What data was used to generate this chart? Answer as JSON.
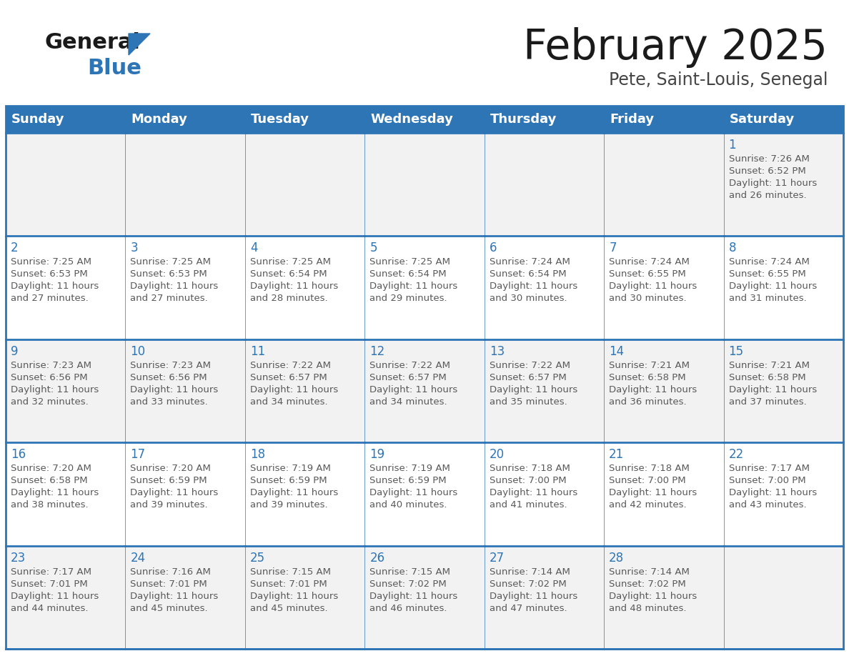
{
  "title": "February 2025",
  "subtitle": "Pete, Saint-Louis, Senegal",
  "days_of_week": [
    "Sunday",
    "Monday",
    "Tuesday",
    "Wednesday",
    "Thursday",
    "Friday",
    "Saturday"
  ],
  "header_bg": "#2E75B6",
  "header_text_color": "#FFFFFF",
  "cell_border_color": "#2E75B6",
  "cell_border_top_color": "#2E75B6",
  "day_number_color": "#2E75B6",
  "cell_text_color": "#595959",
  "bg_color": "#FFFFFF",
  "cell_bg_even": "#F2F2F2",
  "cell_bg_odd": "#FFFFFF",
  "title_color": "#1a1a1a",
  "subtitle_color": "#444444",
  "logo_general_color": "#1a1a1a",
  "logo_blue_color": "#2E75B6",
  "logo_triangle_color": "#2E75B6",
  "calendar_data": [
    [
      null,
      null,
      null,
      null,
      null,
      null,
      {
        "day": 1,
        "sunrise": "7:26 AM",
        "sunset": "6:52 PM",
        "daylight": "11 hours and 26 minutes."
      }
    ],
    [
      {
        "day": 2,
        "sunrise": "7:25 AM",
        "sunset": "6:53 PM",
        "daylight": "11 hours and 27 minutes."
      },
      {
        "day": 3,
        "sunrise": "7:25 AM",
        "sunset": "6:53 PM",
        "daylight": "11 hours and 27 minutes."
      },
      {
        "day": 4,
        "sunrise": "7:25 AM",
        "sunset": "6:54 PM",
        "daylight": "11 hours and 28 minutes."
      },
      {
        "day": 5,
        "sunrise": "7:25 AM",
        "sunset": "6:54 PM",
        "daylight": "11 hours and 29 minutes."
      },
      {
        "day": 6,
        "sunrise": "7:24 AM",
        "sunset": "6:54 PM",
        "daylight": "11 hours and 30 minutes."
      },
      {
        "day": 7,
        "sunrise": "7:24 AM",
        "sunset": "6:55 PM",
        "daylight": "11 hours and 30 minutes."
      },
      {
        "day": 8,
        "sunrise": "7:24 AM",
        "sunset": "6:55 PM",
        "daylight": "11 hours and 31 minutes."
      }
    ],
    [
      {
        "day": 9,
        "sunrise": "7:23 AM",
        "sunset": "6:56 PM",
        "daylight": "11 hours and 32 minutes."
      },
      {
        "day": 10,
        "sunrise": "7:23 AM",
        "sunset": "6:56 PM",
        "daylight": "11 hours and 33 minutes."
      },
      {
        "day": 11,
        "sunrise": "7:22 AM",
        "sunset": "6:57 PM",
        "daylight": "11 hours and 34 minutes."
      },
      {
        "day": 12,
        "sunrise": "7:22 AM",
        "sunset": "6:57 PM",
        "daylight": "11 hours and 34 minutes."
      },
      {
        "day": 13,
        "sunrise": "7:22 AM",
        "sunset": "6:57 PM",
        "daylight": "11 hours and 35 minutes."
      },
      {
        "day": 14,
        "sunrise": "7:21 AM",
        "sunset": "6:58 PM",
        "daylight": "11 hours and 36 minutes."
      },
      {
        "day": 15,
        "sunrise": "7:21 AM",
        "sunset": "6:58 PM",
        "daylight": "11 hours and 37 minutes."
      }
    ],
    [
      {
        "day": 16,
        "sunrise": "7:20 AM",
        "sunset": "6:58 PM",
        "daylight": "11 hours and 38 minutes."
      },
      {
        "day": 17,
        "sunrise": "7:20 AM",
        "sunset": "6:59 PM",
        "daylight": "11 hours and 39 minutes."
      },
      {
        "day": 18,
        "sunrise": "7:19 AM",
        "sunset": "6:59 PM",
        "daylight": "11 hours and 39 minutes."
      },
      {
        "day": 19,
        "sunrise": "7:19 AM",
        "sunset": "6:59 PM",
        "daylight": "11 hours and 40 minutes."
      },
      {
        "day": 20,
        "sunrise": "7:18 AM",
        "sunset": "7:00 PM",
        "daylight": "11 hours and 41 minutes."
      },
      {
        "day": 21,
        "sunrise": "7:18 AM",
        "sunset": "7:00 PM",
        "daylight": "11 hours and 42 minutes."
      },
      {
        "day": 22,
        "sunrise": "7:17 AM",
        "sunset": "7:00 PM",
        "daylight": "11 hours and 43 minutes."
      }
    ],
    [
      {
        "day": 23,
        "sunrise": "7:17 AM",
        "sunset": "7:01 PM",
        "daylight": "11 hours and 44 minutes."
      },
      {
        "day": 24,
        "sunrise": "7:16 AM",
        "sunset": "7:01 PM",
        "daylight": "11 hours and 45 minutes."
      },
      {
        "day": 25,
        "sunrise": "7:15 AM",
        "sunset": "7:01 PM",
        "daylight": "11 hours and 45 minutes."
      },
      {
        "day": 26,
        "sunrise": "7:15 AM",
        "sunset": "7:02 PM",
        "daylight": "11 hours and 46 minutes."
      },
      {
        "day": 27,
        "sunrise": "7:14 AM",
        "sunset": "7:02 PM",
        "daylight": "11 hours and 47 minutes."
      },
      {
        "day": 28,
        "sunrise": "7:14 AM",
        "sunset": "7:02 PM",
        "daylight": "11 hours and 48 minutes."
      },
      null
    ]
  ]
}
